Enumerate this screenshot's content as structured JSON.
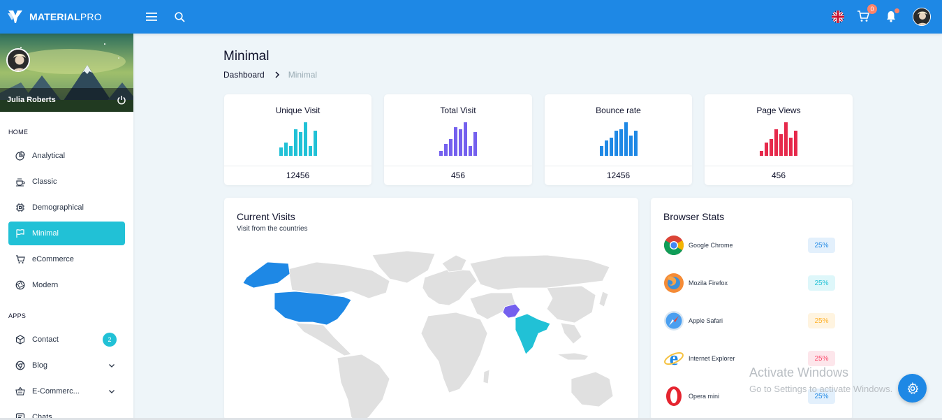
{
  "brand": {
    "bold": "MATERIAL",
    "light": "PRO"
  },
  "topbar": {
    "cart_count": "0"
  },
  "sidebar": {
    "profile_name": "Julia Roberts",
    "home_caption": "HOME",
    "apps_caption": "APPS",
    "home_items": [
      {
        "label": "Analytical"
      },
      {
        "label": "Classic"
      },
      {
        "label": "Demographical"
      },
      {
        "label": "Minimal"
      },
      {
        "label": "eCommerce"
      },
      {
        "label": "Modern"
      }
    ],
    "app_items": [
      {
        "label": "Contact",
        "badge": "2"
      },
      {
        "label": "Blog"
      },
      {
        "label": "E-Commerc..."
      },
      {
        "label": "Chats"
      }
    ]
  },
  "page": {
    "title": "Minimal"
  },
  "breadcrumb": {
    "home": "Dashboard",
    "current": "Minimal"
  },
  "stats": [
    {
      "title": "Unique Visit",
      "value": "12456",
      "color": "#21c1d6",
      "bars": [
        0.25,
        0.4,
        0.3,
        0.8,
        0.7,
        1.0,
        0.3,
        0.75
      ]
    },
    {
      "title": "Total Visit",
      "value": "456",
      "color": "#7460ee",
      "bars": [
        0.15,
        0.35,
        0.5,
        0.85,
        0.8,
        1.0,
        0.3,
        0.7
      ]
    },
    {
      "title": "Bounce rate",
      "value": "12456",
      "color": "#1e88e5",
      "bars": [
        0.3,
        0.45,
        0.55,
        0.75,
        0.8,
        1.0,
        0.6,
        0.75
      ]
    },
    {
      "title": "Page Views",
      "value": "456",
      "color": "#e6294b",
      "bars": [
        0.15,
        0.4,
        0.5,
        0.8,
        0.65,
        1.0,
        0.55,
        0.75
      ]
    }
  ],
  "visits": {
    "title": "Current Visits",
    "subtitle": "Visit from the countries"
  },
  "browser_stats": {
    "title": "Browser Stats",
    "items": [
      {
        "name": "Google Chrome",
        "pct": "25%",
        "color": "#1e88e5",
        "bg": "#e3f0fc",
        "icon": "chrome-icon"
      },
      {
        "name": "Mozila Firefox",
        "pct": "25%",
        "color": "#21c1d6",
        "bg": "#def7fa",
        "icon": "firefox-icon"
      },
      {
        "name": "Apple Safari",
        "pct": "25%",
        "color": "#ffb22b",
        "bg": "#fff4e0",
        "icon": "safari-icon"
      },
      {
        "name": "Internet Explorer",
        "pct": "25%",
        "color": "#fc4b6c",
        "bg": "#fde6eb",
        "icon": "ie-icon"
      },
      {
        "name": "Opera mini",
        "pct": "25%",
        "color": "#1e88e5",
        "bg": "#e3f0fc",
        "icon": "opera-icon"
      }
    ]
  },
  "watermark": {
    "line1": "Activate Windows",
    "line2": "Go to Settings to activate Windows."
  }
}
